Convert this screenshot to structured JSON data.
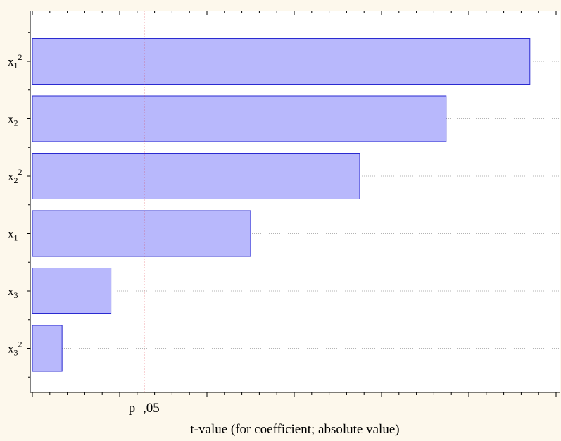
{
  "chart_data": {
    "type": "bar",
    "orientation": "horizontal",
    "title": "",
    "xlabel": "t-value (for coefficient; absolute value)",
    "ylabel": "",
    "categories": [
      {
        "base": "x",
        "sub": "1",
        "sup": "2"
      },
      {
        "base": "x",
        "sub": "2",
        "sup": ""
      },
      {
        "base": "x",
        "sub": "2",
        "sup": "2"
      },
      {
        "base": "x",
        "sub": "1",
        "sup": ""
      },
      {
        "base": "x",
        "sub": "3",
        "sup": ""
      },
      {
        "base": "x",
        "sub": "3",
        "sup": "2"
      }
    ],
    "values": [
      28.5,
      23.7,
      18.75,
      12.5,
      4.5,
      1.7
    ],
    "xlim": [
      0,
      30
    ],
    "reference_line": {
      "value": 6.4,
      "label": "p=,05",
      "color": "#e0303a",
      "style": "dotted"
    },
    "bar_fill": "#b8b8fc",
    "bar_stroke": "#2a2ad0",
    "grid": "horizontal dotted",
    "legend": "none"
  }
}
